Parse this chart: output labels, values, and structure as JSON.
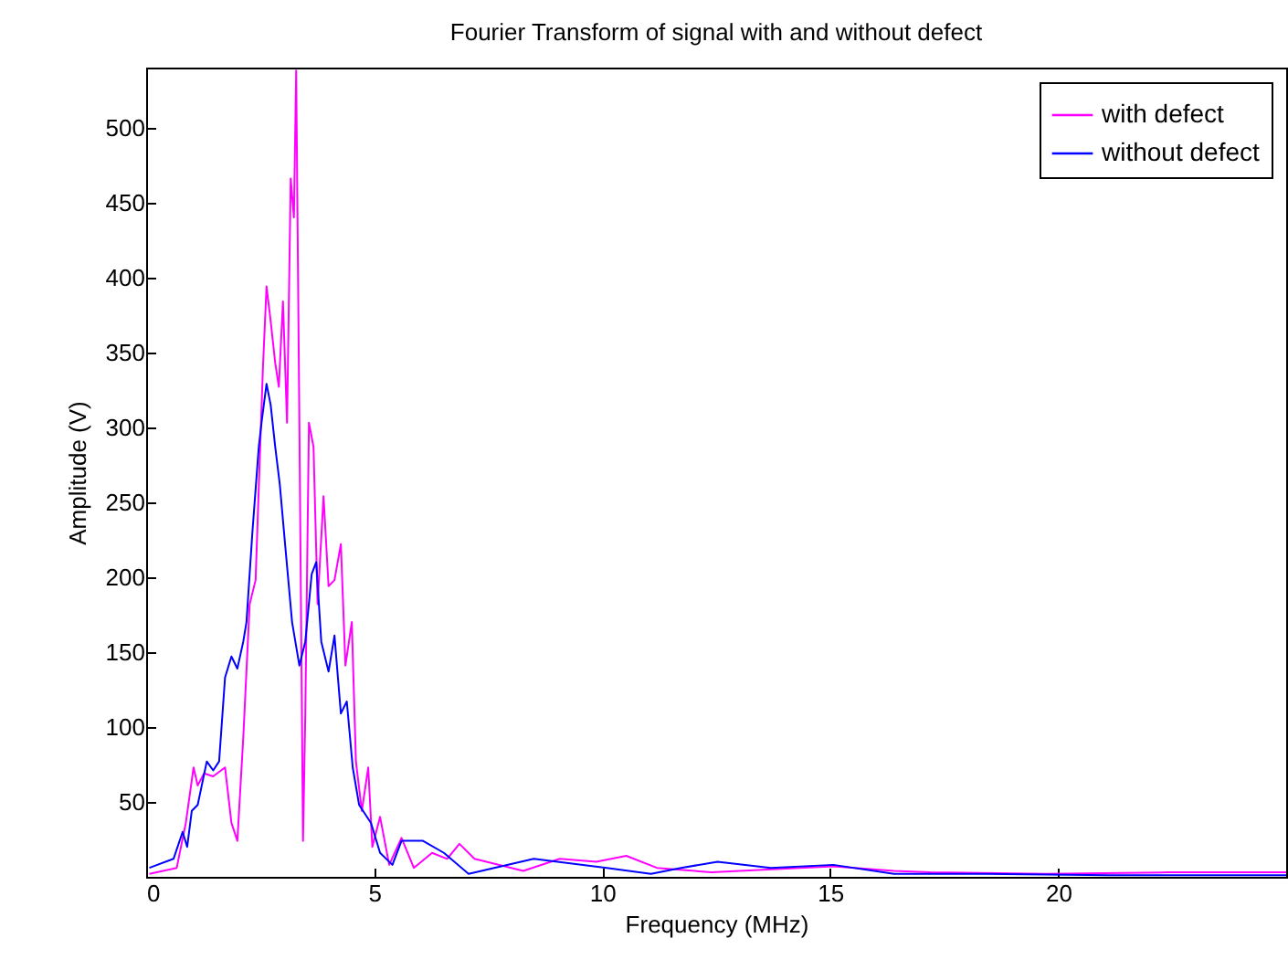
{
  "chart_data": {
    "type": "line",
    "title": "Fourier Transform of signal with and without defect",
    "xlabel": "Frequency (MHz)",
    "ylabel": "Amplitude (V)",
    "xlim": [
      0,
      25
    ],
    "ylim": [
      0,
      540
    ],
    "xticks": [
      0,
      5,
      10,
      15,
      20
    ],
    "yticks": [
      50,
      100,
      150,
      200,
      250,
      300,
      350,
      400,
      450,
      500
    ],
    "grid": false,
    "legend": "top right",
    "marker": "none",
    "line_style": "solid",
    "series": [
      {
        "name": "with defect",
        "color": "#ff00ff",
        "x": [
          0.07,
          0.67,
          0.87,
          1.04,
          1.13,
          1.27,
          1.47,
          1.73,
          1.87,
          2.0,
          2.13,
          2.27,
          2.4,
          2.56,
          2.64,
          2.73,
          2.83,
          2.91,
          3.0,
          3.09,
          3.17,
          3.24,
          3.29,
          3.36,
          3.44,
          3.49,
          3.57,
          3.67,
          3.76,
          3.89,
          4.0,
          4.13,
          4.27,
          4.37,
          4.51,
          4.6,
          4.73,
          4.87,
          4.96,
          5.13,
          5.33,
          5.6,
          5.87,
          6.27,
          6.6,
          6.87,
          7.2,
          8.27,
          9.07,
          9.87,
          10.53,
          11.2,
          12.4,
          13.73,
          15.07,
          16.4,
          17.2,
          19.73,
          22.4,
          25
        ],
        "values": [
          2,
          6,
          36,
          73,
          61,
          69,
          67,
          73,
          36,
          24,
          93,
          182,
          198,
          339,
          394,
          371,
          343,
          327,
          384,
          303,
          466,
          440,
          538,
          303,
          24,
          109,
          303,
          287,
          182,
          254,
          194,
          198,
          222,
          141,
          170,
          77,
          44,
          73,
          20,
          40,
          8,
          26,
          6,
          16,
          12,
          22,
          12,
          4,
          12,
          10,
          14,
          6,
          3,
          5,
          7,
          4,
          3,
          2,
          3,
          3
        ]
      },
      {
        "name": "without defect",
        "color": "#0000ff",
        "x": [
          0.07,
          0.6,
          0.8,
          0.9,
          1.0,
          1.13,
          1.33,
          1.47,
          1.6,
          1.73,
          1.87,
          2.0,
          2.13,
          2.2,
          2.33,
          2.47,
          2.53,
          2.64,
          2.73,
          2.83,
          2.93,
          3.07,
          3.2,
          3.36,
          3.49,
          3.63,
          3.73,
          3.84,
          4.0,
          4.13,
          4.27,
          4.4,
          4.53,
          4.67,
          4.93,
          5.13,
          5.4,
          5.6,
          6.07,
          6.53,
          7.07,
          8.5,
          10.1,
          11.07,
          11.73,
          12.53,
          13.7,
          15.07,
          16.4,
          18.4,
          21.1,
          25
        ],
        "values": [
          6,
          12,
          30,
          20,
          44,
          48,
          77,
          71,
          77,
          133,
          147,
          139,
          157,
          170,
          230,
          287,
          303,
          329,
          315,
          287,
          262,
          214,
          170,
          141,
          157,
          202,
          210,
          157,
          137,
          161,
          109,
          117,
          73,
          48,
          36,
          16,
          8,
          24,
          24,
          16,
          2,
          12,
          6,
          2,
          6,
          10,
          6,
          8,
          2,
          2,
          1,
          1
        ]
      }
    ]
  }
}
